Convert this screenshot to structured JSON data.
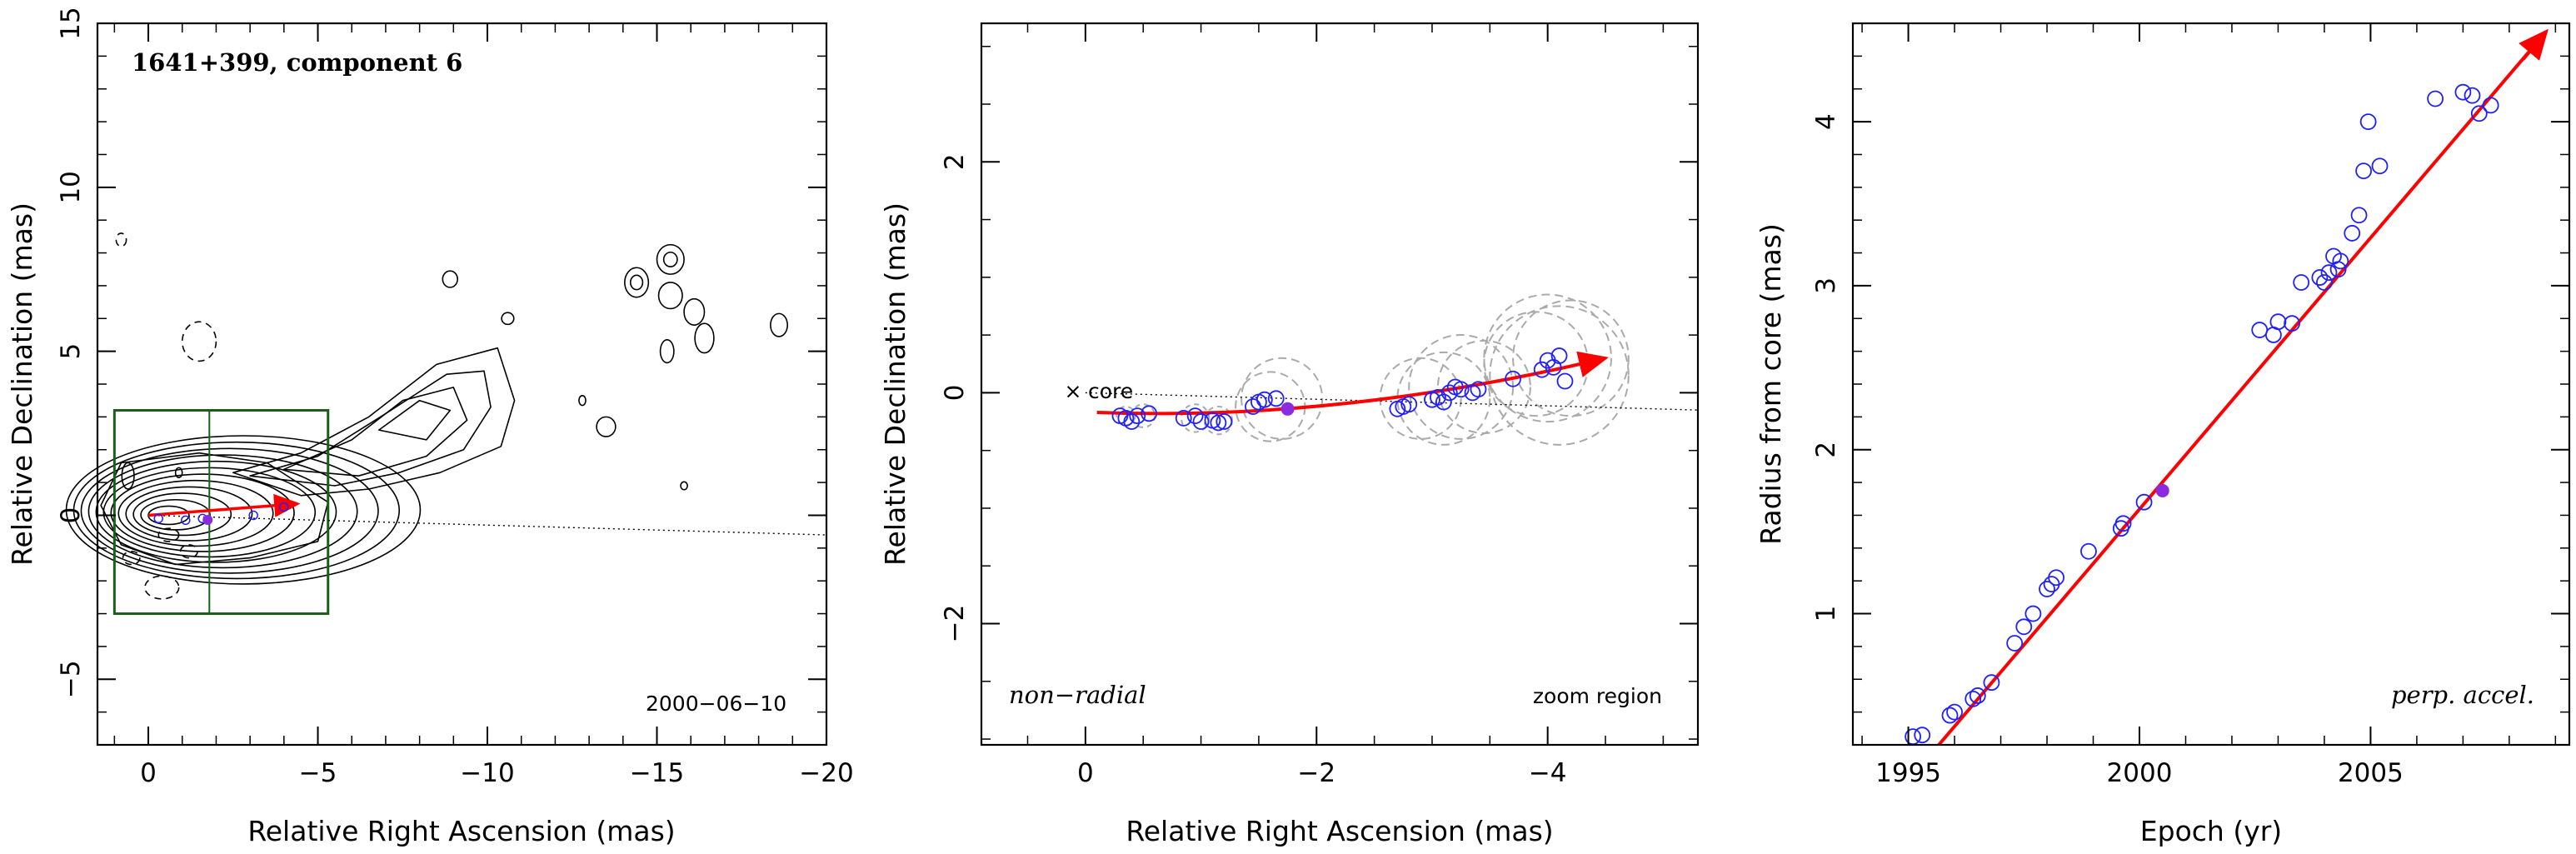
{
  "chart_data": [
    {
      "type": "contour",
      "xlabel": "Relative Right Ascension (mas)",
      "ylabel": "Relative Declination (mas)",
      "title": "1641+399, component 6",
      "date_label": "2000−06−10",
      "xlim": [
        1.5,
        -20
      ],
      "ylim": [
        -7,
        15
      ],
      "xticks": [
        0,
        -5,
        -10,
        -15,
        -20
      ],
      "xtick_labels": [
        "0",
        "−5",
        "−10",
        "−15",
        "−20"
      ],
      "yticks": [
        -5,
        0,
        5,
        10,
        15
      ],
      "ytick_labels": [
        "−5",
        "0",
        "5",
        "10",
        "15"
      ],
      "zoom_box": {
        "x": [
          1,
          -5.3
        ],
        "y": [
          -3,
          3.2
        ],
        "divider_x": -1.8
      },
      "trajectory": [
        [
          0,
          0
        ],
        [
          -4.4,
          0.35
        ]
      ],
      "component_position": [
        -1.75,
        -0.14
      ],
      "colors": {
        "contour": "#000000",
        "box": "#1a5e1a",
        "arrow": "#ff0000",
        "points": "#2020ff",
        "current": "#8a2be2"
      }
    },
    {
      "type": "scatter",
      "xlabel": "Relative Right Ascension (mas)",
      "ylabel": "Relative Declination (mas)",
      "xlim": [
        0.9,
        -5.3
      ],
      "ylim": [
        -3.05,
        3.2
      ],
      "xticks": [
        0,
        -2,
        -4
      ],
      "xtick_labels": [
        "0",
        "−2",
        "−4"
      ],
      "yticks": [
        -2,
        0,
        2
      ],
      "ytick_labels": [
        "−2",
        "0",
        "2"
      ],
      "core_label": "core",
      "annotation_left": "non−radial",
      "annotation_right": "zoom region",
      "points": [
        [
          -0.3,
          -0.2
        ],
        [
          -0.35,
          -0.22
        ],
        [
          -0.4,
          -0.25
        ],
        [
          -0.45,
          -0.2
        ],
        [
          -0.55,
          -0.18
        ],
        [
          -0.85,
          -0.22
        ],
        [
          -0.95,
          -0.2
        ],
        [
          -1.0,
          -0.25
        ],
        [
          -1.1,
          -0.24
        ],
        [
          -1.15,
          -0.26
        ],
        [
          -1.2,
          -0.25
        ],
        [
          -1.45,
          -0.12
        ],
        [
          -1.5,
          -0.08
        ],
        [
          -1.55,
          -0.06
        ],
        [
          -1.65,
          -0.05
        ],
        [
          -2.7,
          -0.14
        ],
        [
          -2.75,
          -0.12
        ],
        [
          -2.8,
          -0.1
        ],
        [
          -3.0,
          -0.06
        ],
        [
          -3.05,
          -0.04
        ],
        [
          -3.1,
          -0.08
        ],
        [
          -3.15,
          0.0
        ],
        [
          -3.2,
          0.05
        ],
        [
          -3.25,
          0.03
        ],
        [
          -3.35,
          0.0
        ],
        [
          -3.4,
          0.03
        ],
        [
          -3.7,
          0.12
        ],
        [
          -3.95,
          0.2
        ],
        [
          -4.0,
          0.28
        ],
        [
          -4.05,
          0.22
        ],
        [
          -4.1,
          0.32
        ],
        [
          -4.15,
          0.1
        ]
      ],
      "current_point": [
        -1.75,
        -0.14
      ],
      "trajectory": [
        [
          -0.1,
          -0.17
        ],
        [
          -4.5,
          0.3
        ]
      ],
      "error_circles": [
        {
          "x": -1.6,
          "y": -0.12,
          "r": 0.3
        },
        {
          "x": -1.7,
          "y": -0.05,
          "r": 0.35
        },
        {
          "x": -2.9,
          "y": -0.05,
          "r": 0.35
        },
        {
          "x": -3.1,
          "y": -0.05,
          "r": 0.4
        },
        {
          "x": -3.25,
          "y": 0.05,
          "r": 0.45
        },
        {
          "x": -3.45,
          "y": 0.05,
          "r": 0.4
        },
        {
          "x": -3.9,
          "y": 0.25,
          "r": 0.45
        },
        {
          "x": -4.0,
          "y": 0.3,
          "r": 0.55
        },
        {
          "x": -4.1,
          "y": 0.15,
          "r": 0.6
        },
        {
          "x": -4.2,
          "y": 0.3,
          "r": 0.5
        }
      ],
      "colors": {
        "arrow": "#ff0000",
        "points": "#2020ff",
        "current": "#8a2be2",
        "circles": "#aaaaaa"
      }
    },
    {
      "type": "scatter",
      "xlabel": "Epoch (yr)",
      "ylabel": "Radius from core (mas)",
      "annotation": "perp. accel.",
      "xlim": [
        1993.8,
        2009.3
      ],
      "ylim": [
        0.2,
        4.6
      ],
      "xticks": [
        1995,
        2000,
        2005
      ],
      "xtick_labels": [
        "1995",
        "2000",
        "2005"
      ],
      "yticks": [
        1,
        2,
        3,
        4
      ],
      "ytick_labels": [
        "1",
        "2",
        "3",
        "4"
      ],
      "points": [
        [
          1995.1,
          0.25
        ],
        [
          1995.3,
          0.26
        ],
        [
          1995.9,
          0.38
        ],
        [
          1996.0,
          0.4
        ],
        [
          1996.4,
          0.48
        ],
        [
          1996.5,
          0.5
        ],
        [
          1996.8,
          0.58
        ],
        [
          1997.3,
          0.82
        ],
        [
          1997.5,
          0.92
        ],
        [
          1997.7,
          1.0
        ],
        [
          1998.0,
          1.15
        ],
        [
          1998.1,
          1.18
        ],
        [
          1998.2,
          1.22
        ],
        [
          1998.9,
          1.38
        ],
        [
          1999.6,
          1.52
        ],
        [
          1999.65,
          1.55
        ],
        [
          2000.1,
          1.68
        ],
        [
          2002.6,
          2.73
        ],
        [
          2002.9,
          2.7
        ],
        [
          2003.0,
          2.78
        ],
        [
          2003.3,
          2.77
        ],
        [
          2003.5,
          3.02
        ],
        [
          2003.9,
          3.05
        ],
        [
          2004.0,
          3.02
        ],
        [
          2004.1,
          3.08
        ],
        [
          2004.2,
          3.18
        ],
        [
          2004.3,
          3.1
        ],
        [
          2004.35,
          3.15
        ],
        [
          2004.6,
          3.32
        ],
        [
          2004.75,
          3.43
        ],
        [
          2004.85,
          3.7
        ],
        [
          2004.95,
          4.0
        ],
        [
          2005.2,
          3.73
        ],
        [
          2006.4,
          4.14
        ],
        [
          2007.0,
          4.18
        ],
        [
          2007.2,
          4.16
        ],
        [
          2007.35,
          4.05
        ],
        [
          2007.6,
          4.1
        ]
      ],
      "current_point": [
        2000.5,
        1.75
      ],
      "trajectory": [
        [
          1994.3,
          -0.25
        ],
        [
          2008.8,
          4.55
        ]
      ],
      "colors": {
        "arrow": "#ff0000",
        "points": "#2020ff",
        "current": "#8a2be2"
      }
    }
  ]
}
